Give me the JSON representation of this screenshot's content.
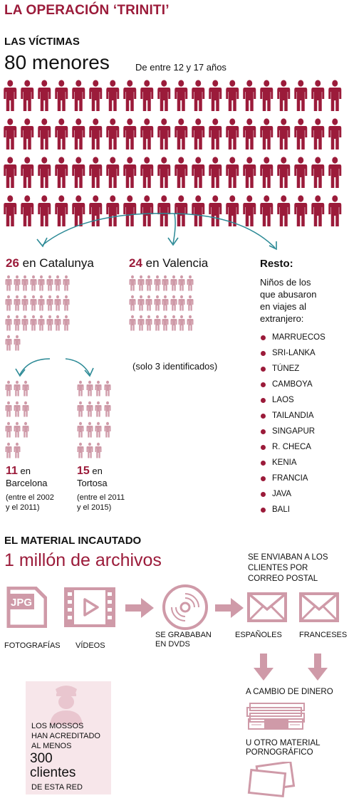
{
  "title": "LA OPERACIÓN ‘TRINITI’",
  "victims": {
    "heading": "LAS VÍCTIMAS",
    "total": "80 menores",
    "age_range": "De entre 12 y 17 años",
    "total_count": 80
  },
  "catalunya": {
    "count": "26",
    "label": "en Catalunya",
    "icons": 26
  },
  "valencia": {
    "count": "24",
    "label": "en Valencia",
    "note": "(solo 3 identificados)",
    "icons": 24
  },
  "barcelona": {
    "count": "11",
    "label_1": "en",
    "label_2": "Barcelona",
    "period_1": "(entre el 2002",
    "period_2": "y el 2011)",
    "icons": 11
  },
  "tortosa": {
    "count": "15",
    "label_1": "en",
    "label_2": "Tortosa",
    "period_1": "(entre el 2011",
    "period_2": "y el 2015)",
    "icons": 15
  },
  "resto": {
    "heading": "Resto:",
    "desc_lines": [
      "Niños de los",
      "que abusaron",
      "en viajes al",
      "extranjero:"
    ],
    "countries": [
      "MARRUECOS",
      "SRI-LANKA",
      "TÚNEZ",
      "CAMBOYA",
      "LAOS",
      "TAILANDIA",
      "SINGAPUR",
      "R. CHECA",
      "KENIA",
      "FRANCIA",
      "JAVA",
      "BALI"
    ]
  },
  "material": {
    "heading": "EL MATERIAL INCAUTADO",
    "total": "1 millón de archivos",
    "jpg_text": "JPG",
    "photos": "FOTOGRAFÍAS",
    "videos": "VÍDEOS",
    "dvd_1": "SE GRABABAN",
    "dvd_2": "EN DVDS",
    "mail_1": "SE ENVIABAN A LOS",
    "mail_2": "CLIENTES POR",
    "mail_3": "CORREO POSTAL",
    "spanish": "ESPAÑOLES",
    "french": "FRANCESES",
    "money": "A CAMBIO DE DINERO",
    "other_1": "U OTRO MATERIAL",
    "other_2": "PORNOGRÁFICO"
  },
  "clients": {
    "line_1": "LOS MOSSOS",
    "line_2": "HAN ACREDITADO",
    "line_3": "AL MENOS",
    "number": "300",
    "word": "clientes",
    "line_4": "DE ESTA RED"
  },
  "colors": {
    "dark_red": "#9b1b3a",
    "pink": "#d4a0ad",
    "teal": "#2c8a96",
    "icon_pink": "#cf9aa8",
    "card_bg": "#f7e6ea"
  },
  "icons": {
    "person": "person-icon",
    "jpg": "jpg-file-icon",
    "video": "video-film-icon",
    "dvd": "dvd-disc-icon",
    "envelope": "envelope-icon",
    "money": "money-stack-icon",
    "photos": "photo-prints-icon",
    "police": "police-officer-icon"
  }
}
